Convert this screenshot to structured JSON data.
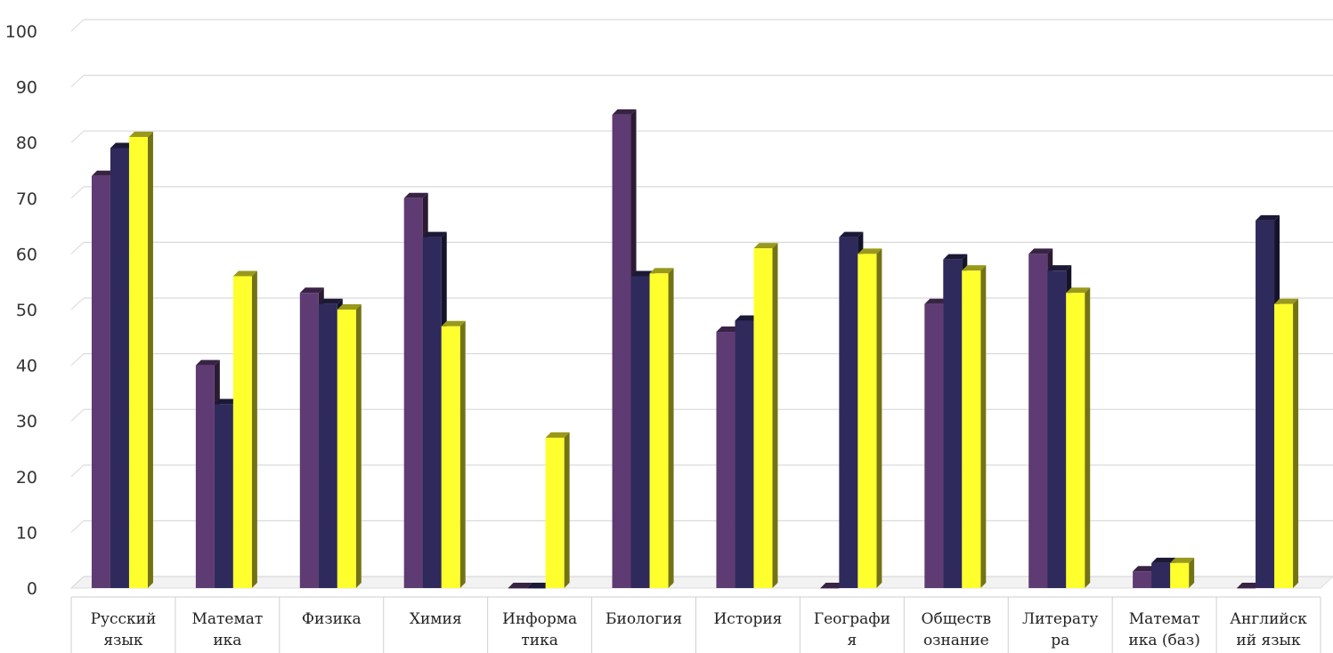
{
  "chart_data": {
    "type": "bar",
    "three_d": true,
    "categories": [
      [
        "Русский",
        "язык"
      ],
      [
        "Математ",
        "ика"
      ],
      [
        "Физика"
      ],
      [
        "Химия"
      ],
      [
        "Информа",
        "тика"
      ],
      [
        "Биология"
      ],
      [
        "История"
      ],
      [
        "Географи",
        "я"
      ],
      [
        "Обществ",
        "ознание"
      ],
      [
        "Литерату",
        "ра"
      ],
      [
        "Математ",
        "ика (баз)"
      ],
      [
        "Английск",
        "ий язык"
      ]
    ],
    "series": [
      {
        "values": [
          74,
          40,
          53,
          70,
          0,
          85,
          46,
          0,
          51,
          60,
          3,
          0
        ],
        "color": "#5e3b72"
      },
      {
        "values": [
          79,
          33,
          51,
          63,
          0,
          56,
          48,
          63,
          59,
          57,
          4.5,
          66
        ],
        "color": "#2f2a5c"
      },
      {
        "values": [
          81,
          56,
          50,
          47,
          27,
          56.5,
          61,
          60,
          57,
          53,
          4.5,
          51
        ],
        "color": "#ffff2e"
      }
    ],
    "ylim": [
      0,
      100
    ],
    "yticks": [
      0,
      10,
      20,
      30,
      40,
      50,
      60,
      70,
      80,
      90,
      100
    ],
    "grid": true,
    "legend": "none"
  }
}
